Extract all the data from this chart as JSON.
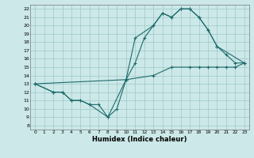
{
  "bg_color": "#cce8e8",
  "grid_color": "#9dc8c8",
  "line_color": "#1e6b6b",
  "xlabel": "Humidex (Indice chaleur)",
  "xlim": [
    -0.5,
    23.5
  ],
  "ylim": [
    7.5,
    22.5
  ],
  "xticks": [
    0,
    1,
    2,
    3,
    4,
    5,
    6,
    7,
    8,
    9,
    10,
    11,
    12,
    13,
    14,
    15,
    16,
    17,
    18,
    19,
    20,
    21,
    22,
    23
  ],
  "yticks": [
    8,
    9,
    10,
    11,
    12,
    13,
    14,
    15,
    16,
    17,
    18,
    19,
    20,
    21,
    22
  ],
  "line1_x": [
    0,
    2,
    3,
    4,
    5,
    6,
    7,
    8,
    10,
    11,
    13,
    14,
    15,
    16,
    17,
    18,
    19,
    20,
    23
  ],
  "line1_y": [
    13,
    12,
    12,
    11,
    11,
    10.5,
    10.5,
    9,
    13.5,
    18.5,
    20,
    21.5,
    21,
    22,
    22,
    21,
    19.5,
    17.5,
    15.5
  ],
  "line2_x": [
    0,
    2,
    3,
    4,
    5,
    6,
    8,
    9,
    10,
    11,
    12,
    13,
    14,
    15,
    16,
    17,
    18,
    19,
    20,
    21,
    22,
    23
  ],
  "line2_y": [
    13,
    12,
    12,
    11,
    11,
    10.5,
    9,
    10,
    13.5,
    15.5,
    18.5,
    20,
    21.5,
    21,
    22,
    22,
    21,
    19.5,
    17.5,
    16.5,
    15.5,
    15.5
  ],
  "line3_x": [
    0,
    10,
    13,
    15,
    17,
    18,
    19,
    20,
    21,
    22,
    23
  ],
  "line3_y": [
    13,
    13.5,
    14,
    15,
    15,
    15,
    15,
    15,
    15,
    15,
    15.5
  ]
}
